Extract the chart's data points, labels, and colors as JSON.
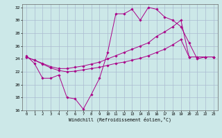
{
  "xlabel": "Windchill (Refroidissement éolien,°C)",
  "background_color": "#cce8e8",
  "grid_color": "#aabbd0",
  "line_color": "#aa0088",
  "xlim": [
    -0.5,
    23.5
  ],
  "ylim": [
    16,
    32.5
  ],
  "yticks": [
    16,
    18,
    20,
    22,
    24,
    26,
    28,
    30,
    32
  ],
  "xticks": [
    0,
    1,
    2,
    3,
    4,
    5,
    6,
    7,
    8,
    9,
    10,
    11,
    12,
    13,
    14,
    15,
    16,
    17,
    18,
    19,
    20,
    21,
    22,
    23
  ],
  "line1_x": [
    0,
    1,
    2,
    3,
    4,
    5,
    6,
    7,
    8,
    9,
    10,
    11,
    12,
    13,
    14,
    15,
    16,
    17,
    18,
    19,
    20,
    21,
    22,
    23
  ],
  "line1_y": [
    24.5,
    23.3,
    21.0,
    21.0,
    21.5,
    18.0,
    17.8,
    16.2,
    18.5,
    21.0,
    25.0,
    31.0,
    31.0,
    31.7,
    30.0,
    32.0,
    31.7,
    30.5,
    30.0,
    29.0,
    26.5,
    24.0,
    24.3,
    24.3
  ],
  "line2_x": [
    0,
    1,
    2,
    3,
    4,
    5,
    6,
    7,
    8,
    9,
    10,
    11,
    12,
    13,
    14,
    15,
    16,
    17,
    18,
    19,
    20,
    21,
    22,
    23
  ],
  "line2_y": [
    24.3,
    23.8,
    23.3,
    22.8,
    22.5,
    22.5,
    22.7,
    22.9,
    23.2,
    23.5,
    24.0,
    24.5,
    25.0,
    25.5,
    26.0,
    26.5,
    27.5,
    28.2,
    29.0,
    30.0,
    24.3,
    24.3,
    24.3,
    24.3
  ],
  "line3_x": [
    0,
    1,
    2,
    3,
    4,
    5,
    6,
    7,
    8,
    9,
    10,
    11,
    12,
    13,
    14,
    15,
    16,
    17,
    18,
    19,
    20,
    21,
    22,
    23
  ],
  "line3_y": [
    24.3,
    23.8,
    23.2,
    22.6,
    22.2,
    22.0,
    22.1,
    22.3,
    22.5,
    22.7,
    23.0,
    23.3,
    23.5,
    23.8,
    24.1,
    24.5,
    25.0,
    25.5,
    26.2,
    27.0,
    24.3,
    24.3,
    24.3,
    24.3
  ]
}
